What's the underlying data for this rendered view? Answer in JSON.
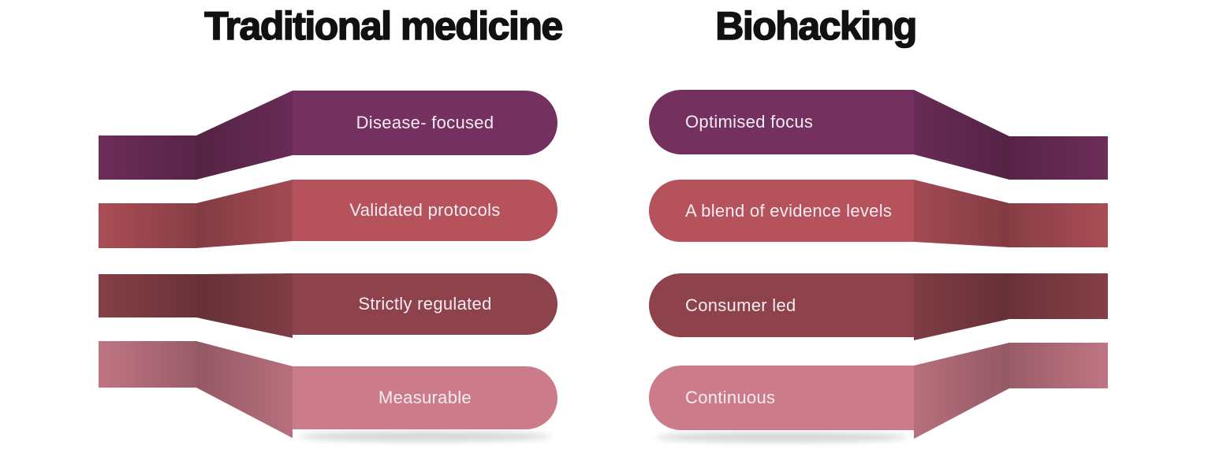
{
  "background_color": "#ffffff",
  "heading_color": "#111111",
  "label_text_color": "#f5ecf2",
  "columns": [
    {
      "title": "Traditional medicine",
      "side": "left",
      "rows": [
        {
          "label": "Disease- focused",
          "color": "#74305f"
        },
        {
          "label": "Validated protocols",
          "color": "#b5525c"
        },
        {
          "label": "Strictly regulated",
          "color": "#8e434c"
        },
        {
          "label": "Measurable",
          "color": "#cc7b8b"
        }
      ]
    },
    {
      "title": "Biohacking",
      "side": "right",
      "rows": [
        {
          "label": "Optimised focus",
          "color": "#74305f"
        },
        {
          "label": "A blend of evidence levels",
          "color": "#b5525c"
        },
        {
          "label": "Consumer led",
          "color": "#8e434c"
        },
        {
          "label": "Continuous",
          "color": "#cc7b8b"
        }
      ]
    }
  ]
}
